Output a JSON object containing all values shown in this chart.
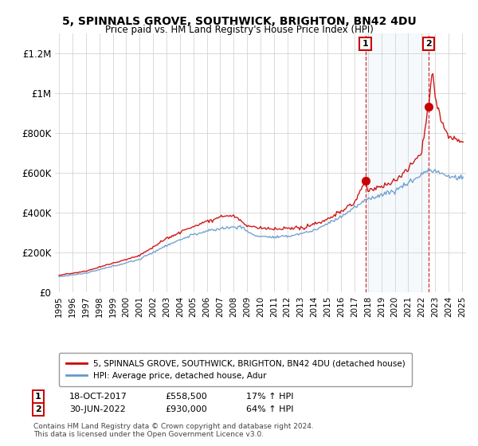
{
  "title": "5, SPINNALS GROVE, SOUTHWICK, BRIGHTON, BN42 4DU",
  "subtitle": "Price paid vs. HM Land Registry's House Price Index (HPI)",
  "ylim": [
    0,
    1300000
  ],
  "yticks": [
    0,
    200000,
    400000,
    600000,
    800000,
    1000000,
    1200000
  ],
  "ytick_labels": [
    "£0",
    "£200K",
    "£400K",
    "£600K",
    "£800K",
    "£1M",
    "£1.2M"
  ],
  "sale1_year": 2017.8,
  "sale1_price": 558500,
  "sale2_year": 2022.5,
  "sale2_price": 930000,
  "line_color_red": "#cc0000",
  "line_color_blue": "#6699cc",
  "shade_color": "#cce0f0",
  "legend_label1": "5, SPINNALS GROVE, SOUTHWICK, BRIGHTON, BN42 4DU (detached house)",
  "legend_label2": "HPI: Average price, detached house, Adur",
  "footer": "Contains HM Land Registry data © Crown copyright and database right 2024.\nThis data is licensed under the Open Government Licence v3.0.",
  "background_color": "#ffffff",
  "grid_color": "#cccccc"
}
